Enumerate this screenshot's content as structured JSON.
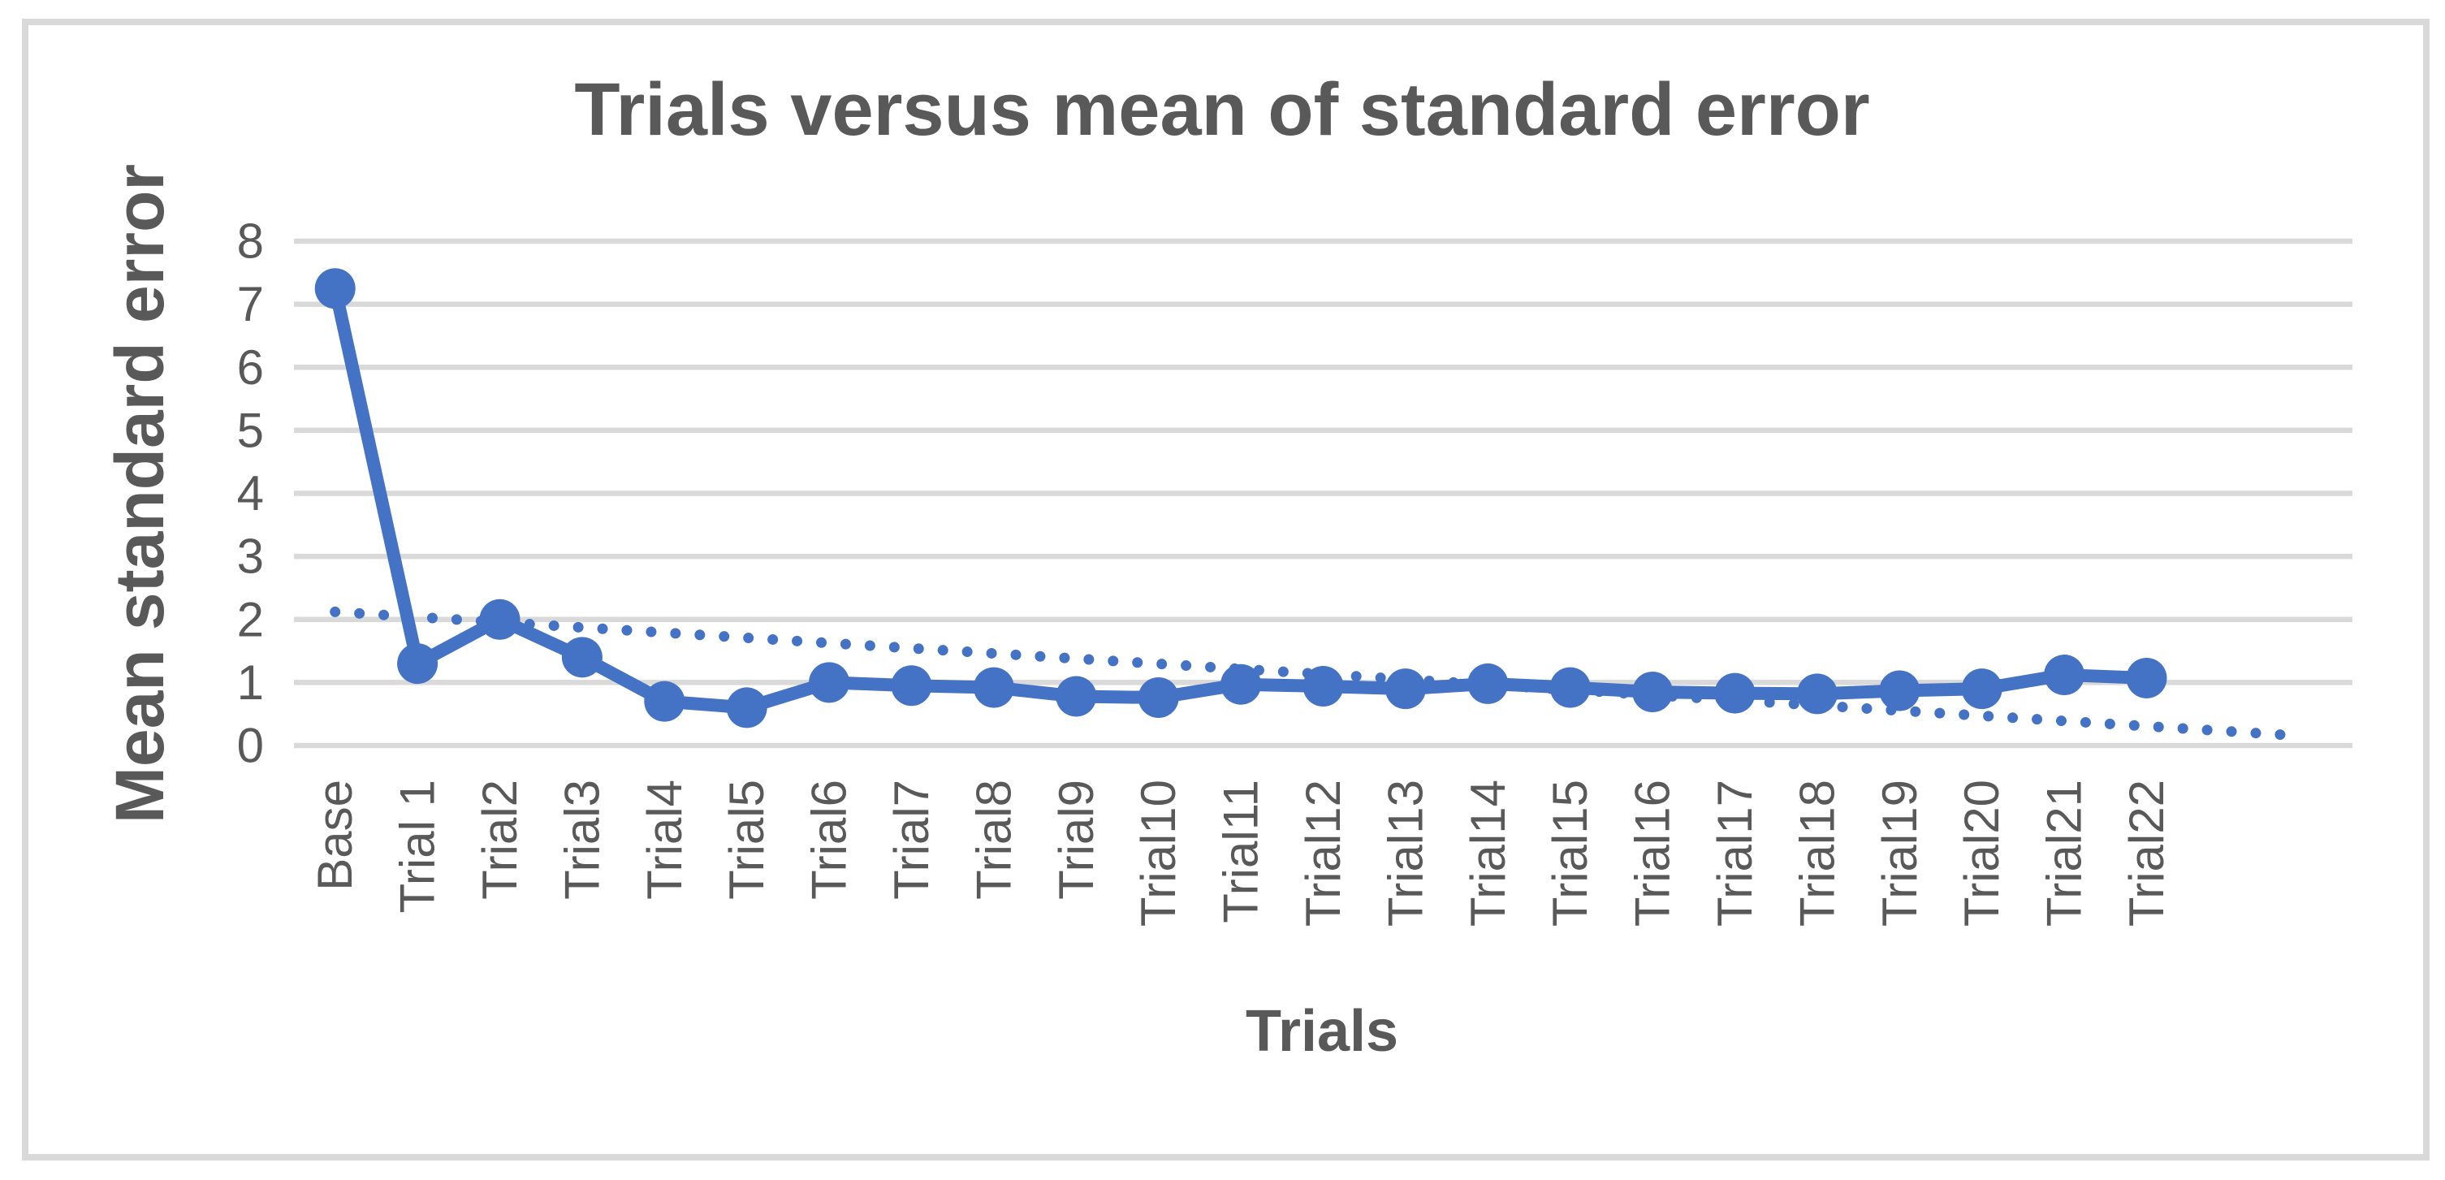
{
  "chart_data": {
    "type": "line",
    "title": "Trials versus mean of standard error",
    "xlabel": "Trials",
    "ylabel": "Mean standard error",
    "categories": [
      "Base",
      "Trial 1",
      "Trial2",
      "Trial3",
      "Trial4",
      "Trial5",
      "Trial6",
      "Trial7",
      "Trial8",
      "Trial9",
      "Trial10",
      "Trial11",
      "Trial12",
      "Trial13",
      "Trial14",
      "Trial15",
      "Trial16",
      "Trial17",
      "Trial18",
      "Trial19",
      "Trial20",
      "Trial21",
      "Trial22"
    ],
    "series": [
      {
        "name": "Mean standard error",
        "values": [
          7.25,
          1.3,
          2.0,
          1.4,
          0.7,
          0.6,
          1.0,
          0.95,
          0.92,
          0.78,
          0.76,
          0.97,
          0.94,
          0.9,
          0.98,
          0.92,
          0.85,
          0.83,
          0.82,
          0.87,
          0.9,
          1.12,
          1.07
        ],
        "color": "#4472c4",
        "marker": "circle",
        "line_style": "solid"
      }
    ],
    "trendline": {
      "type": "linear",
      "line_style": "dotted",
      "color": "#4472c4",
      "start_index": 0,
      "start_value": 2.12,
      "end_index": 23.9,
      "end_value": 0.15
    },
    "ylim": [
      0,
      8
    ],
    "yticks": [
      0,
      1,
      2,
      3,
      4,
      5,
      6,
      7,
      8
    ],
    "x_slot_count": 25,
    "grid": "horizontal",
    "legend": "none",
    "text_color": "#595959",
    "gridline_color": "#d9d9d9",
    "frame_color": "#d9d9d9",
    "background_color": "#ffffff"
  }
}
